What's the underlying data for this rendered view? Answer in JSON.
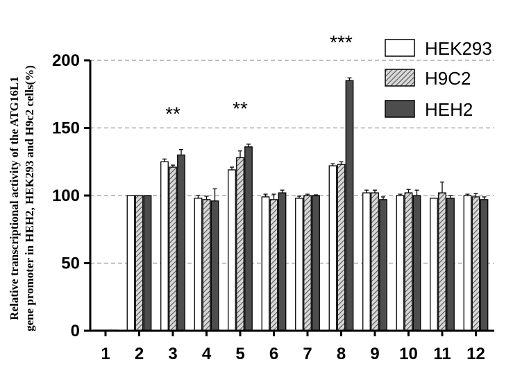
{
  "chart_data": {
    "type": "bar",
    "categories": [
      "1",
      "2",
      "3",
      "4",
      "5",
      "6",
      "7",
      "8",
      "9",
      "10",
      "11",
      "12"
    ],
    "series": [
      {
        "name": "HEK293",
        "values": [
          0.5,
          100,
          125,
          98,
          119,
          99,
          98,
          122,
          102,
          100,
          98,
          100
        ],
        "errors": [
          0,
          0,
          2,
          2,
          2,
          2,
          1.5,
          1.5,
          2,
          1,
          0,
          1
        ]
      },
      {
        "name": "H9C2",
        "values": [
          0.5,
          100,
          121,
          97,
          128,
          97,
          100,
          123,
          102,
          102,
          102,
          99
        ],
        "errors": [
          0,
          0,
          1.5,
          2.5,
          5,
          4,
          1,
          2,
          2,
          2.5,
          8,
          2.5
        ]
      },
      {
        "name": "HEH2",
        "values": [
          0.5,
          100,
          130,
          96,
          136,
          102,
          100,
          185,
          97,
          100,
          98,
          97
        ],
        "errors": [
          0,
          0,
          4,
          9,
          2,
          2,
          0.5,
          2,
          2,
          4,
          2,
          2
        ]
      }
    ],
    "significance": [
      {
        "category": "3",
        "label": "**"
      },
      {
        "category": "5",
        "label": "**"
      },
      {
        "category": "8",
        "label": "***"
      }
    ],
    "ylabel_line1": "Relative transcriptional activity of the ATG16L1",
    "ylabel_line2": "gene promoter in HEH2, HEK293 and H9c2 cells(%)",
    "yticks": [
      0,
      50,
      100,
      150,
      200
    ],
    "ylim": [
      0,
      200
    ],
    "grid": "dashed horizontal at 50,100,150,200",
    "legend": "top-right",
    "colors": {
      "HEK293": "#ffffff",
      "H9C2": "#b8b8b8",
      "HEH2": "#4d4d4d"
    }
  }
}
